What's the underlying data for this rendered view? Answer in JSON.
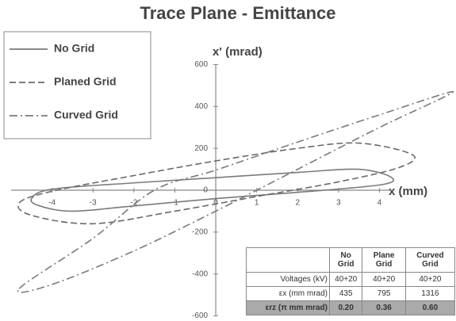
{
  "chart_data": {
    "type": "phase-ellipse",
    "title": "Trace Plane - Emittance",
    "x_label": "x (mm)",
    "y_label": "x' (mrad)",
    "xlim": [
      -5,
      4.3
    ],
    "ylim": [
      -600,
      600
    ],
    "xticks": [
      -4,
      -3,
      -2,
      -1,
      0,
      1,
      2,
      3,
      4
    ],
    "yticks": [
      -600,
      -400,
      -200,
      0,
      200,
      400,
      600
    ],
    "legend": "upper-left",
    "series": [
      {
        "name": "No Grid",
        "color": "#7a7a7a",
        "dash": "solid",
        "x": [
          -4.5,
          -4,
          -2,
          0,
          2,
          3.5,
          4.3,
          4,
          2,
          0,
          -2,
          -3.5,
          -4.3
        ],
        "y": [
          -40,
          5,
          35,
          60,
          85,
          100,
          60,
          25,
          -10,
          -40,
          -75,
          -100,
          -75
        ]
      },
      {
        "name": "Planed Grid",
        "color": "#6a6a6a",
        "dash": "dashed",
        "x": [
          -4.8,
          -4,
          -2,
          0,
          2,
          3.5,
          4.8,
          4.5,
          3,
          1,
          -1,
          -3,
          -4.5
        ],
        "y": [
          -60,
          -5,
          70,
          140,
          200,
          225,
          170,
          110,
          40,
          -30,
          -100,
          -160,
          -120
        ]
      },
      {
        "name": "Curved Grid",
        "color": "#7a7a7a",
        "dash": "dashdot",
        "x": [
          -4.8,
          -3,
          -1.5,
          0,
          2,
          4,
          5.8,
          4,
          2,
          1,
          0,
          -2,
          -4
        ],
        "y": [
          -470,
          -230,
          0,
          96,
          230,
          360,
          470,
          300,
          100,
          0,
          -100,
          -290,
          -450
        ]
      }
    ]
  },
  "table": {
    "header": [
      "No Grid",
      "Plane Grid",
      "Curved Grid"
    ],
    "rows": [
      [
        "Voltages (kV)",
        "40+20",
        "40+20",
        "40+20"
      ],
      [
        "εx (mm mrad)",
        "435",
        "795",
        "1316"
      ],
      [
        "εrz (π mm mrad)",
        "0.20",
        "0.36",
        "0.60"
      ]
    ]
  }
}
